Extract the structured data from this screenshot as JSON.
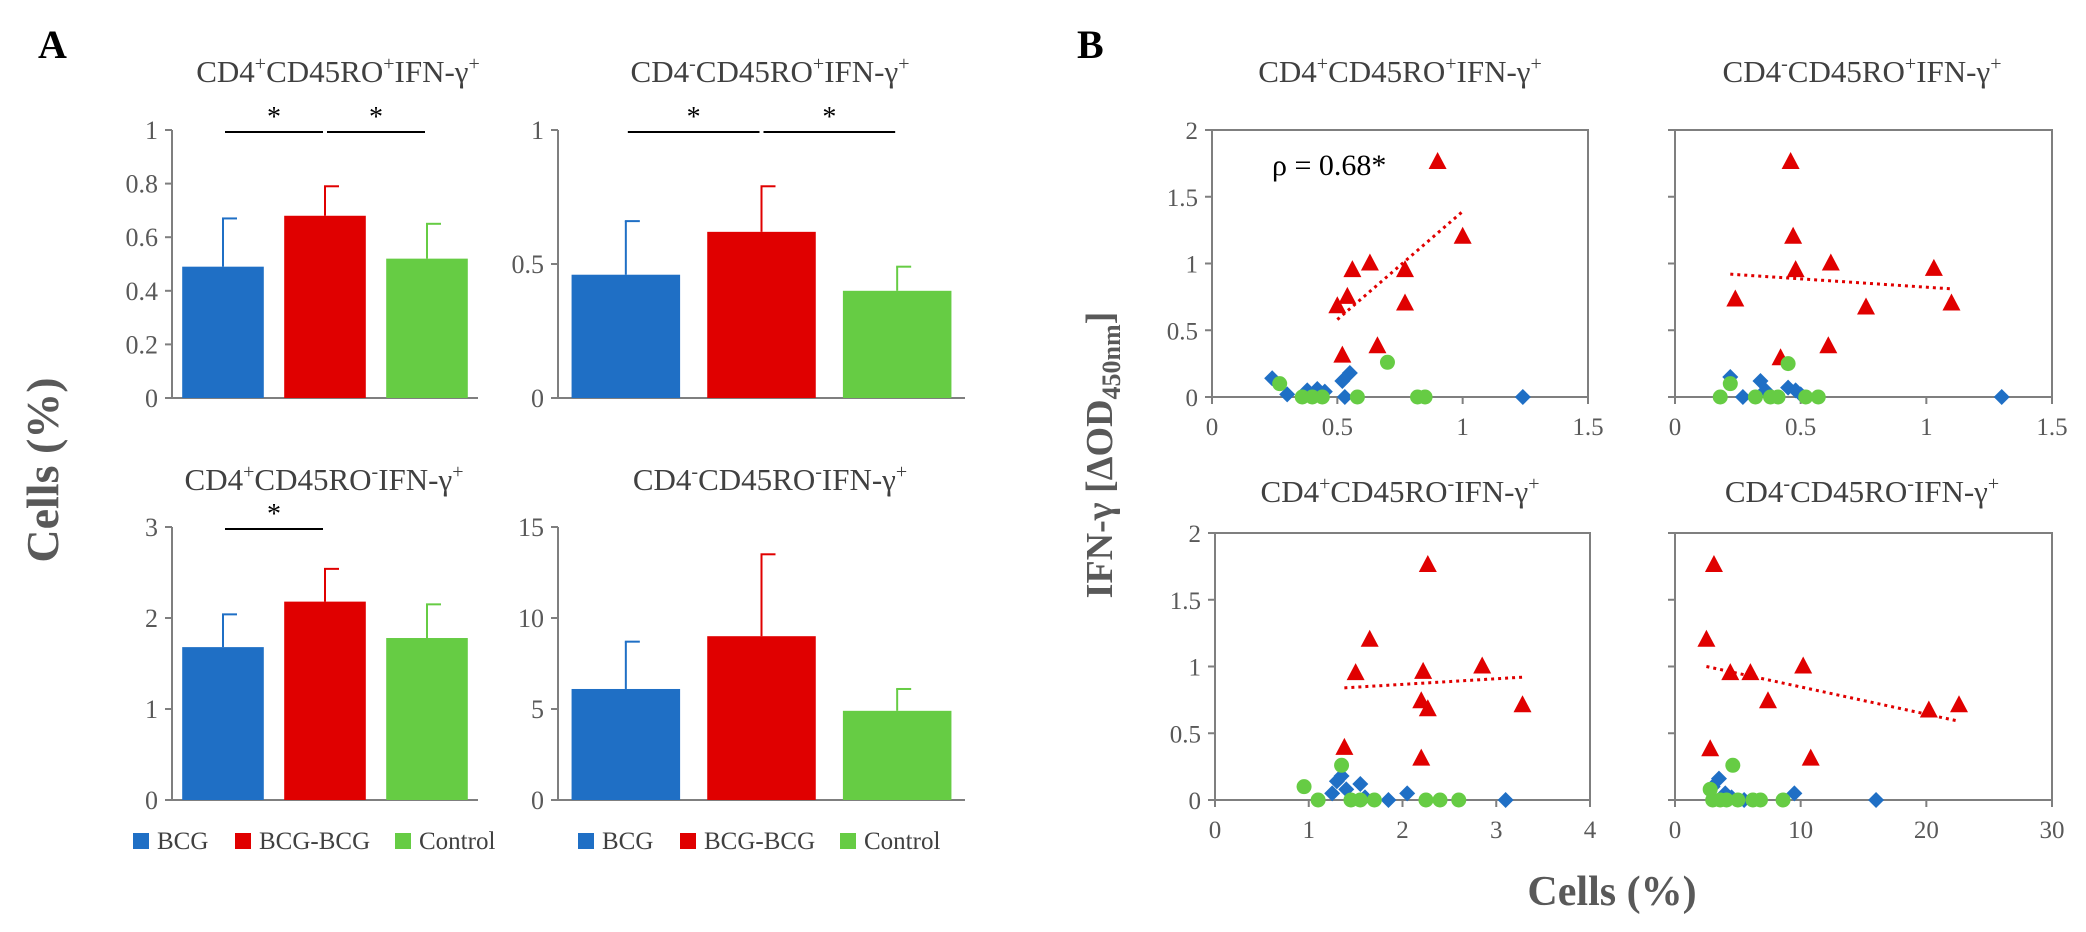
{
  "panel_labels": {
    "a": "A",
    "b": "B"
  },
  "colors": {
    "BCG": "#1f6fc5",
    "BCG-BCG": "#e00000",
    "Control": "#66cc44",
    "axis": "#7f7f7f",
    "text": "#404040",
    "fit": "#e00000"
  },
  "a_ylabel": "Cells (%)",
  "b_ylabel_main": "IFN-γ [ΔOD",
  "b_ylabel_sub": "450nm",
  "b_ylabel_end": "]",
  "b_xlabel": "Cells (%)",
  "legend": [
    {
      "name": "BCG",
      "color": "#1f6fc5"
    },
    {
      "name": "BCG-BCG",
      "color": "#e00000"
    },
    {
      "name": "Control",
      "color": "#66cc44"
    }
  ],
  "chart_data": [
    {
      "type": "bar",
      "panel": "A",
      "title": {
        "m1": "CD4",
        "s1": "+",
        "m2": "CD45RO",
        "s2": "+",
        "m3": "IFN-γ",
        "s3": "+"
      },
      "categories": [
        "BCG",
        "BCG-BCG",
        "Control"
      ],
      "values": [
        0.49,
        0.68,
        0.52
      ],
      "errors": [
        0.18,
        0.11,
        0.13
      ],
      "ylim": [
        0,
        1
      ],
      "yticks": [
        0,
        0.2,
        0.4,
        0.6,
        0.8,
        1
      ],
      "yticklabels": [
        "0",
        "0.2",
        "0.4",
        "0.6",
        "0.8",
        "1"
      ],
      "significance": [
        {
          "from": 0,
          "to": 1,
          "label": "*"
        },
        {
          "from": 1,
          "to": 2,
          "label": "*"
        }
      ]
    },
    {
      "type": "bar",
      "panel": "A",
      "title": {
        "m1": "CD4",
        "s1": "-",
        "m2": "CD45RO",
        "s2": "+",
        "m3": "IFN-γ",
        "s3": "+"
      },
      "categories": [
        "BCG",
        "BCG-BCG",
        "Control"
      ],
      "values": [
        0.46,
        0.62,
        0.4
      ],
      "errors": [
        0.2,
        0.17,
        0.09
      ],
      "ylim": [
        0,
        1
      ],
      "yticks": [
        0,
        0.5,
        1
      ],
      "yticklabels": [
        "0",
        "0.5",
        "1"
      ],
      "significance": [
        {
          "from": 0,
          "to": 1,
          "label": "*"
        },
        {
          "from": 1,
          "to": 2,
          "label": "*"
        }
      ]
    },
    {
      "type": "bar",
      "panel": "A",
      "title": {
        "m1": "CD4",
        "s1": "+",
        "m2": "CD45RO",
        "s2": "-",
        "m3": "IFN-γ",
        "s3": "+"
      },
      "categories": [
        "BCG",
        "BCG-BCG",
        "Control"
      ],
      "values": [
        1.68,
        2.18,
        1.78
      ],
      "errors": [
        0.36,
        0.36,
        0.37
      ],
      "ylim": [
        0,
        3
      ],
      "yticks": [
        0,
        1,
        2,
        3
      ],
      "yticklabels": [
        "0",
        "1",
        "2",
        "3"
      ],
      "significance": [
        {
          "from": 0,
          "to": 1,
          "label": "*"
        }
      ]
    },
    {
      "type": "bar",
      "panel": "A",
      "title": {
        "m1": "CD4",
        "s1": "-",
        "m2": "CD45RO",
        "s2": "-",
        "m3": "IFN-γ",
        "s3": "+"
      },
      "categories": [
        "BCG",
        "BCG-BCG",
        "Control"
      ],
      "values": [
        6.1,
        9.0,
        4.9
      ],
      "errors": [
        2.6,
        4.5,
        1.2
      ],
      "ylim": [
        0,
        15
      ],
      "yticks": [
        0,
        5,
        10,
        15
      ],
      "yticklabels": [
        "0",
        "5",
        "10",
        "15"
      ],
      "significance": []
    },
    {
      "type": "scatter",
      "panel": "B",
      "title": {
        "m1": "CD4",
        "s1": "+",
        "m2": "CD45RO",
        "s2": "+",
        "m3": "IFN-γ",
        "s3": "+"
      },
      "xlim": [
        0,
        1.5
      ],
      "ylim": [
        0,
        2
      ],
      "xticks": [
        0,
        0.5,
        1,
        1.5
      ],
      "xticklabels": [
        "0",
        "0.5",
        "1",
        "1.5"
      ],
      "yticks": [
        0,
        0.5,
        1,
        1.5,
        2
      ],
      "yticklabels": [
        "0",
        "0.5",
        "1",
        "1.5",
        "2"
      ],
      "annotation": "ρ = 0.68*",
      "series": [
        {
          "name": "BCG",
          "marker": "diamond",
          "points": [
            [
              0.24,
              0.14
            ],
            [
              0.3,
              0.02
            ],
            [
              0.38,
              0.05
            ],
            [
              0.42,
              0.06
            ],
            [
              0.45,
              0.04
            ],
            [
              0.52,
              0.12
            ],
            [
              0.53,
              0.0
            ],
            [
              0.55,
              0.18
            ],
            [
              1.24,
              0.0
            ]
          ]
        },
        {
          "name": "BCG-BCG",
          "marker": "triangle",
          "points": [
            [
              0.5,
              0.68
            ],
            [
              0.52,
              0.31
            ],
            [
              0.54,
              0.75
            ],
            [
              0.56,
              0.95
            ],
            [
              0.63,
              1.0
            ],
            [
              0.66,
              0.38
            ],
            [
              0.77,
              0.95
            ],
            [
              0.77,
              0.7
            ],
            [
              0.9,
              1.76
            ],
            [
              1.0,
              1.2
            ]
          ]
        },
        {
          "name": "Control",
          "marker": "circle",
          "points": [
            [
              0.27,
              0.1
            ],
            [
              0.36,
              0.0
            ],
            [
              0.4,
              0.0
            ],
            [
              0.44,
              0.0
            ],
            [
              0.58,
              0.0
            ],
            [
              0.7,
              0.26
            ],
            [
              0.82,
              0.0
            ],
            [
              0.85,
              0.0
            ]
          ]
        }
      ],
      "trend": {
        "series": "BCG-BCG",
        "x": [
          0.5,
          1.0
        ],
        "y": [
          0.58,
          1.39
        ]
      }
    },
    {
      "type": "scatter",
      "panel": "B",
      "title": {
        "m1": "CD4",
        "s1": "-",
        "m2": "CD45RO",
        "s2": "+",
        "m3": "IFN-γ",
        "s3": "+"
      },
      "xlim": [
        0,
        1.5
      ],
      "ylim": [
        0,
        2
      ],
      "xticks": [
        0,
        0.5,
        1,
        1.5
      ],
      "xticklabels": [
        "0",
        "0.5",
        "1",
        "1.5"
      ],
      "yticks": [
        0,
        0.5,
        1,
        1.5,
        2
      ],
      "yticklabels": [],
      "annotation": "",
      "series": [
        {
          "name": "BCG",
          "marker": "diamond",
          "points": [
            [
              0.22,
              0.15
            ],
            [
              0.27,
              0.0
            ],
            [
              0.34,
              0.12
            ],
            [
              0.36,
              0.05
            ],
            [
              0.45,
              0.07
            ],
            [
              0.48,
              0.05
            ],
            [
              0.5,
              0.02
            ],
            [
              1.3,
              0.0
            ]
          ]
        },
        {
          "name": "BCG-BCG",
          "marker": "triangle",
          "points": [
            [
              0.24,
              0.73
            ],
            [
              0.42,
              0.29
            ],
            [
              0.46,
              1.76
            ],
            [
              0.47,
              1.2
            ],
            [
              0.48,
              0.95
            ],
            [
              0.61,
              0.38
            ],
            [
              0.62,
              1.0
            ],
            [
              0.76,
              0.67
            ],
            [
              1.03,
              0.96
            ],
            [
              1.1,
              0.7
            ]
          ]
        },
        {
          "name": "Control",
          "marker": "circle",
          "points": [
            [
              0.18,
              0.0
            ],
            [
              0.22,
              0.1
            ],
            [
              0.32,
              0.0
            ],
            [
              0.38,
              0.0
            ],
            [
              0.41,
              0.0
            ],
            [
              0.45,
              0.25
            ],
            [
              0.52,
              0.0
            ],
            [
              0.57,
              0.0
            ]
          ]
        }
      ],
      "trend": {
        "series": "BCG-BCG",
        "x": [
          0.22,
          1.1
        ],
        "y": [
          0.92,
          0.81
        ]
      }
    },
    {
      "type": "scatter",
      "panel": "B",
      "title": {
        "m1": "CD4",
        "s1": "+",
        "m2": "CD45RO",
        "s2": "-",
        "m3": "IFN-γ",
        "s3": "+"
      },
      "xlim": [
        0,
        4
      ],
      "ylim": [
        0,
        2
      ],
      "xticks": [
        0,
        1,
        2,
        3,
        4
      ],
      "xticklabels": [
        "0",
        "1",
        "2",
        "3",
        "4"
      ],
      "yticks": [
        0,
        0.5,
        1,
        1.5,
        2
      ],
      "yticklabels": [
        "0",
        "0.5",
        "1",
        "1.5",
        "2"
      ],
      "annotation": "",
      "series": [
        {
          "name": "BCG",
          "marker": "diamond",
          "points": [
            [
              1.25,
              0.05
            ],
            [
              1.3,
              0.14
            ],
            [
              1.35,
              0.18
            ],
            [
              1.4,
              0.08
            ],
            [
              1.55,
              0.12
            ],
            [
              1.6,
              0.02
            ],
            [
              1.85,
              0.0
            ],
            [
              2.05,
              0.05
            ],
            [
              3.1,
              0.0
            ]
          ]
        },
        {
          "name": "BCG-BCG",
          "marker": "triangle",
          "points": [
            [
              1.38,
              0.39
            ],
            [
              1.5,
              0.95
            ],
            [
              1.65,
              1.2
            ],
            [
              2.2,
              0.31
            ],
            [
              2.2,
              0.74
            ],
            [
              2.22,
              0.96
            ],
            [
              2.27,
              0.68
            ],
            [
              2.27,
              1.76
            ],
            [
              2.85,
              1.0
            ],
            [
              3.28,
              0.71
            ]
          ]
        },
        {
          "name": "Control",
          "marker": "circle",
          "points": [
            [
              0.95,
              0.1
            ],
            [
              1.1,
              0.0
            ],
            [
              1.35,
              0.26
            ],
            [
              1.45,
              0.0
            ],
            [
              1.55,
              0.0
            ],
            [
              1.7,
              0.0
            ],
            [
              2.25,
              0.0
            ],
            [
              2.4,
              0.0
            ],
            [
              2.6,
              0.0
            ]
          ]
        }
      ],
      "trend": {
        "series": "BCG-BCG",
        "x": [
          1.38,
          3.28
        ],
        "y": [
          0.84,
          0.92
        ]
      }
    },
    {
      "type": "scatter",
      "panel": "B",
      "title": {
        "m1": "CD4",
        "s1": "-",
        "m2": "CD45RO",
        "s2": "-",
        "m3": "IFN-γ",
        "s3": "+"
      },
      "xlim": [
        0,
        30
      ],
      "ylim": [
        0,
        2
      ],
      "xticks": [
        0,
        10,
        20,
        30
      ],
      "xticklabels": [
        "0",
        "10",
        "20",
        "30"
      ],
      "yticks": [
        0,
        0.5,
        1,
        1.5,
        2
      ],
      "yticklabels": [],
      "annotation": "",
      "series": [
        {
          "name": "BCG",
          "marker": "diamond",
          "points": [
            [
              3.0,
              0.1
            ],
            [
              3.5,
              0.16
            ],
            [
              4.0,
              0.05
            ],
            [
              4.5,
              0.02
            ],
            [
              5.5,
              0.0
            ],
            [
              9.5,
              0.05
            ],
            [
              16.0,
              0.0
            ]
          ]
        },
        {
          "name": "BCG-BCG",
          "marker": "triangle",
          "points": [
            [
              2.5,
              1.2
            ],
            [
              2.8,
              0.38
            ],
            [
              3.1,
              1.76
            ],
            [
              4.4,
              0.95
            ],
            [
              6.0,
              0.95
            ],
            [
              7.4,
              0.74
            ],
            [
              10.2,
              1.0
            ],
            [
              10.8,
              0.31
            ],
            [
              20.2,
              0.67
            ],
            [
              22.6,
              0.71
            ]
          ]
        },
        {
          "name": "Control",
          "marker": "circle",
          "points": [
            [
              2.8,
              0.08
            ],
            [
              3.0,
              0.0
            ],
            [
              3.6,
              0.0
            ],
            [
              4.1,
              0.0
            ],
            [
              4.6,
              0.26
            ],
            [
              5.0,
              0.0
            ],
            [
              6.2,
              0.0
            ],
            [
              6.8,
              0.0
            ],
            [
              8.6,
              0.0
            ]
          ]
        }
      ],
      "trend": {
        "series": "BCG-BCG",
        "x": [
          2.5,
          22.6
        ],
        "y": [
          1.0,
          0.59
        ]
      }
    }
  ]
}
